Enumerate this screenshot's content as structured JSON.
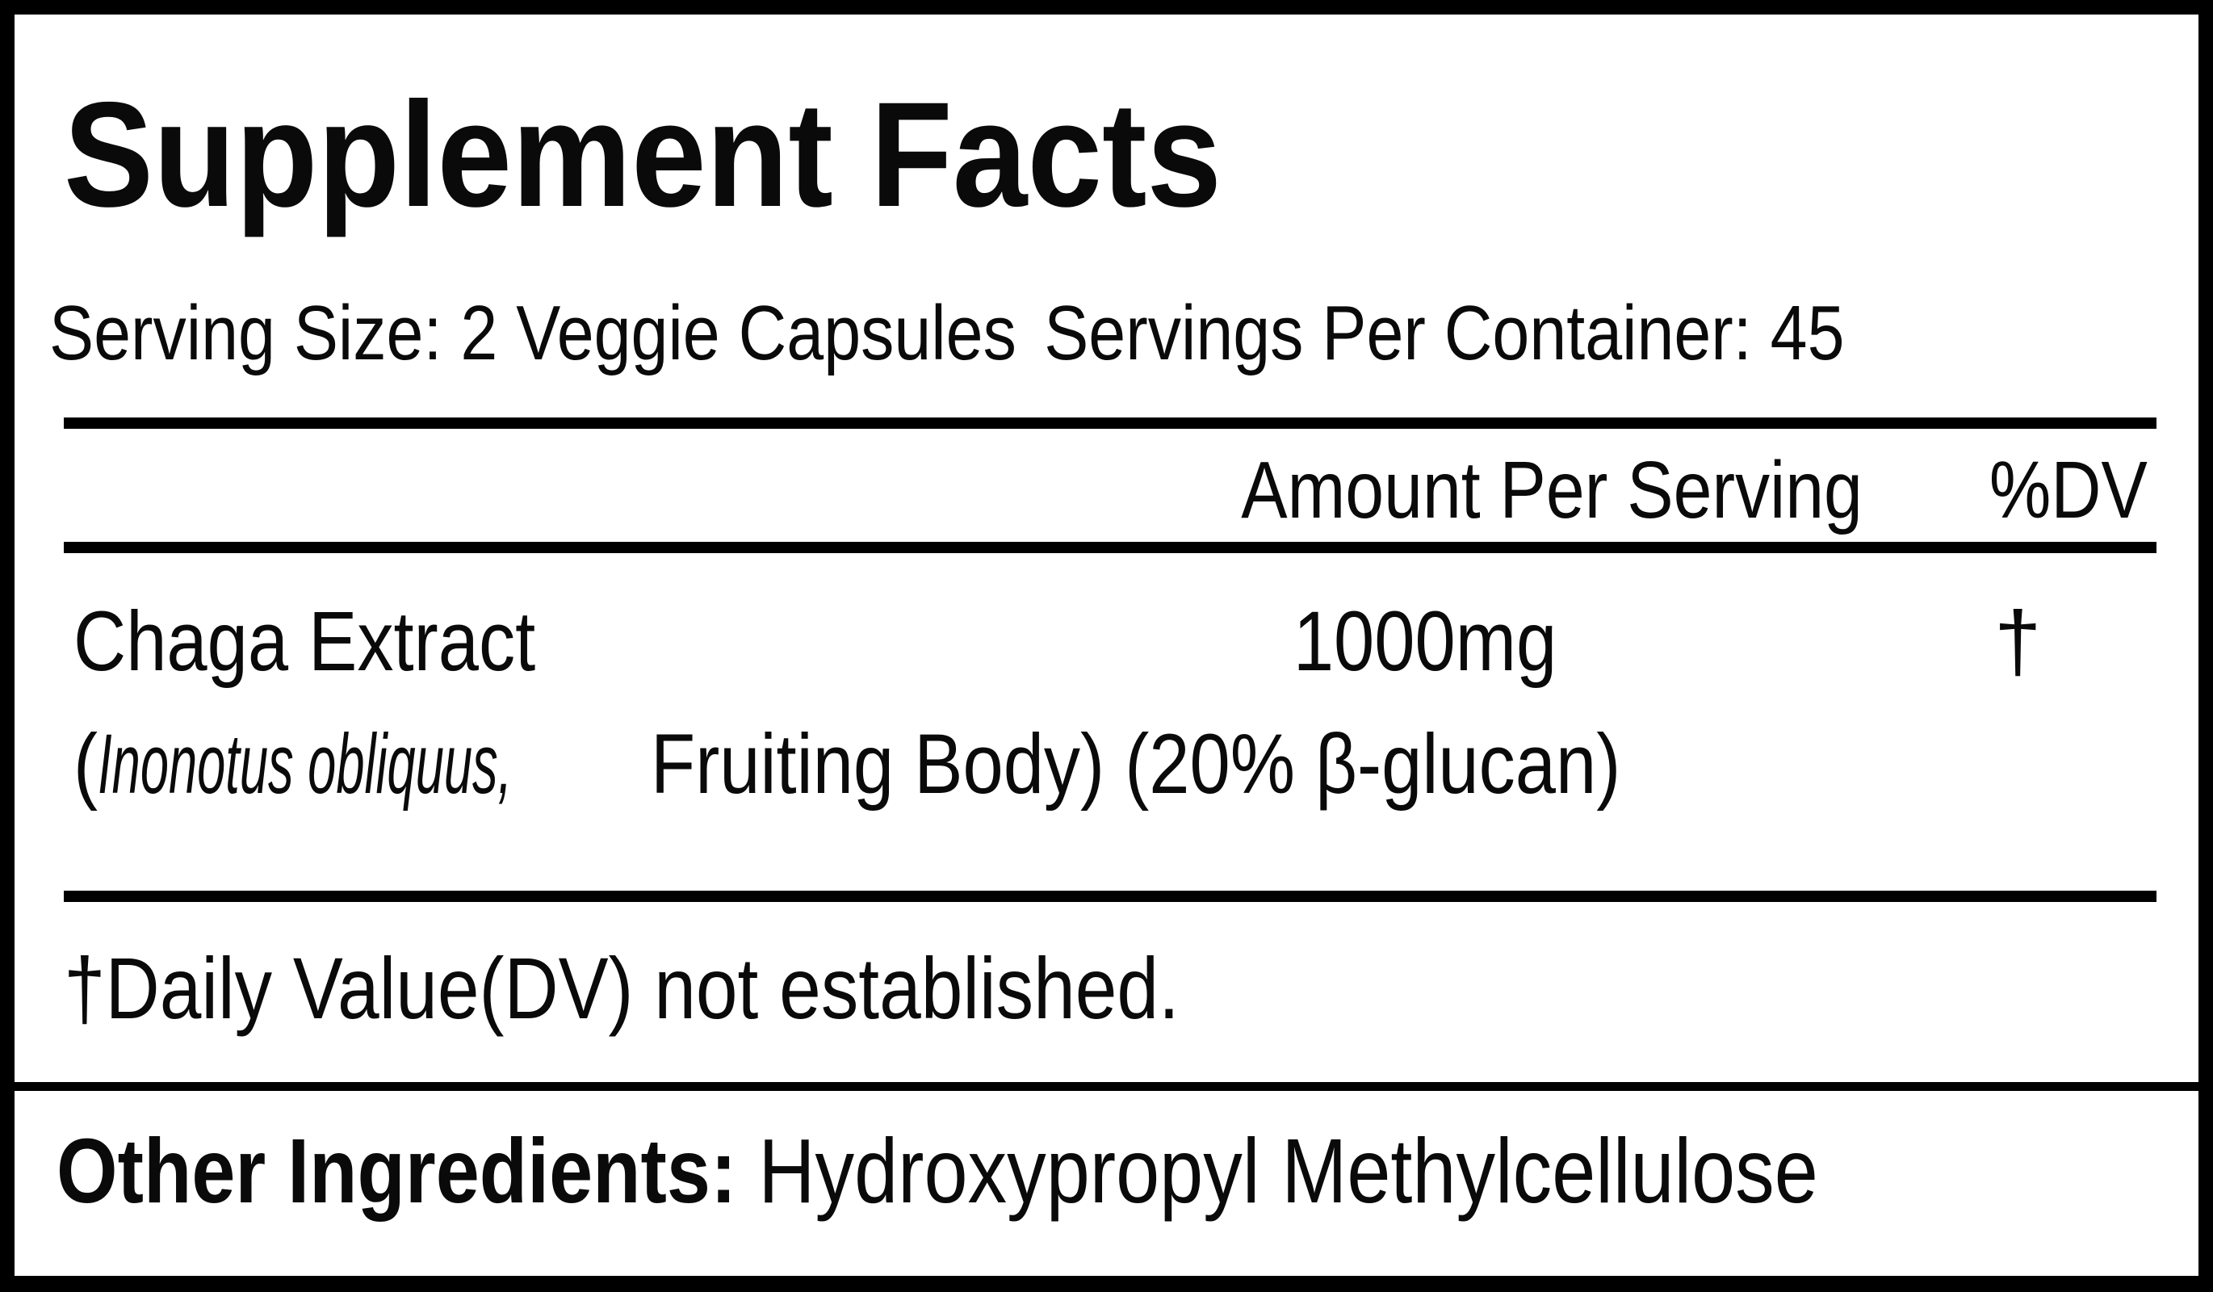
{
  "title": "Supplement Facts",
  "serving_size": "Serving Size: 2 Veggie Capsules",
  "servings_per_container": "Servings Per Container: 45",
  "header": {
    "amount": "Amount Per Serving",
    "dv": "%DV"
  },
  "ingredient": {
    "name": "Chaga Extract",
    "amount": "1000mg",
    "dv": "†",
    "detail_open": "(",
    "species": "Inonotus obliquus,",
    "detail_rest": " Fruiting Body) (20% β-glucan)"
  },
  "footnote": "†Daily Value(DV) not established.",
  "other_ingredients": {
    "label": "Other Ingredients:",
    "value": " Hydroxypropyl Methylcellulose"
  }
}
